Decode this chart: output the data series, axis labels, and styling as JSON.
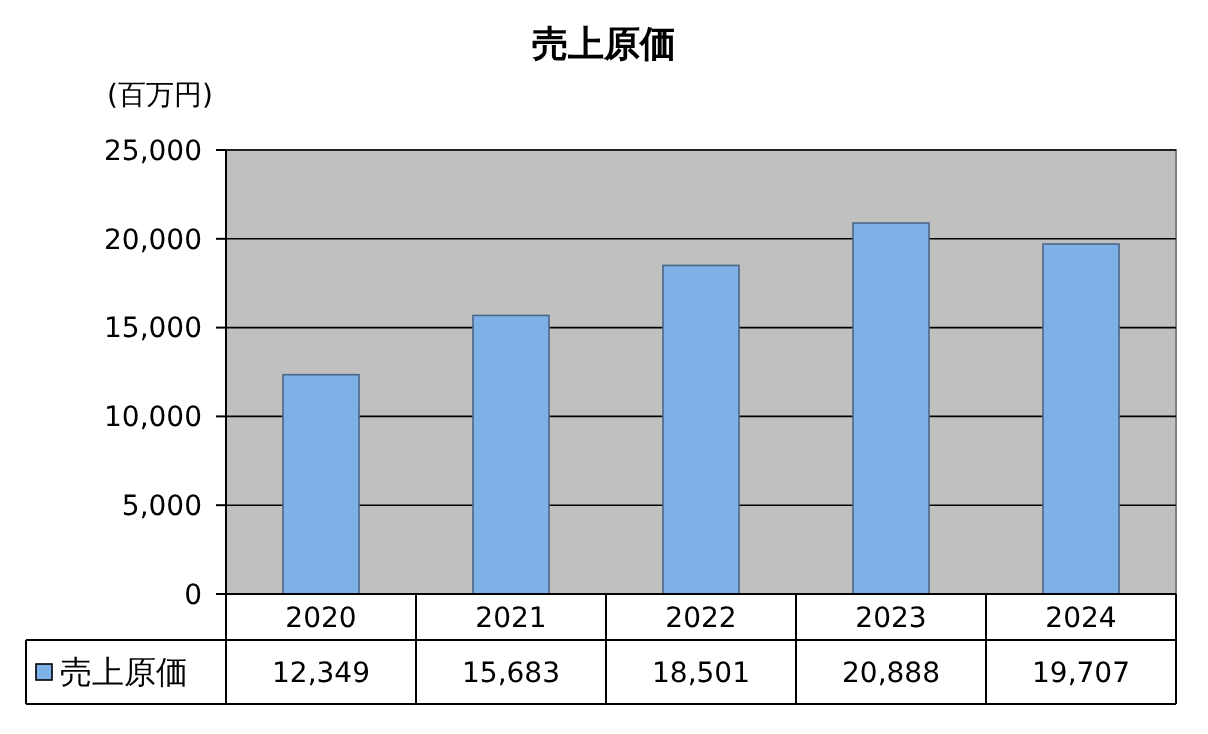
{
  "chart_data": {
    "type": "bar",
    "title": "売上原価",
    "ylabel": "(百万円)",
    "categories": [
      "2020",
      "2021",
      "2022",
      "2023",
      "2024"
    ],
    "series": [
      {
        "name": "売上原価",
        "color": "#7fb0e8",
        "values": [
          12349,
          15683,
          18501,
          20888,
          19707
        ],
        "value_labels": [
          "12,349",
          "15,683",
          "18,501",
          "20,888",
          "19,707"
        ]
      }
    ],
    "ylim": [
      0,
      25000
    ],
    "yticks": [
      {
        "value": 0,
        "label": "0"
      },
      {
        "value": 5000,
        "label": "5,000"
      },
      {
        "value": 10000,
        "label": "10,000"
      },
      {
        "value": 15000,
        "label": "15,000"
      },
      {
        "value": 20000,
        "label": "20,000"
      },
      {
        "value": 25000,
        "label": "25,000"
      }
    ],
    "grid": "y",
    "legend": "bottom"
  }
}
